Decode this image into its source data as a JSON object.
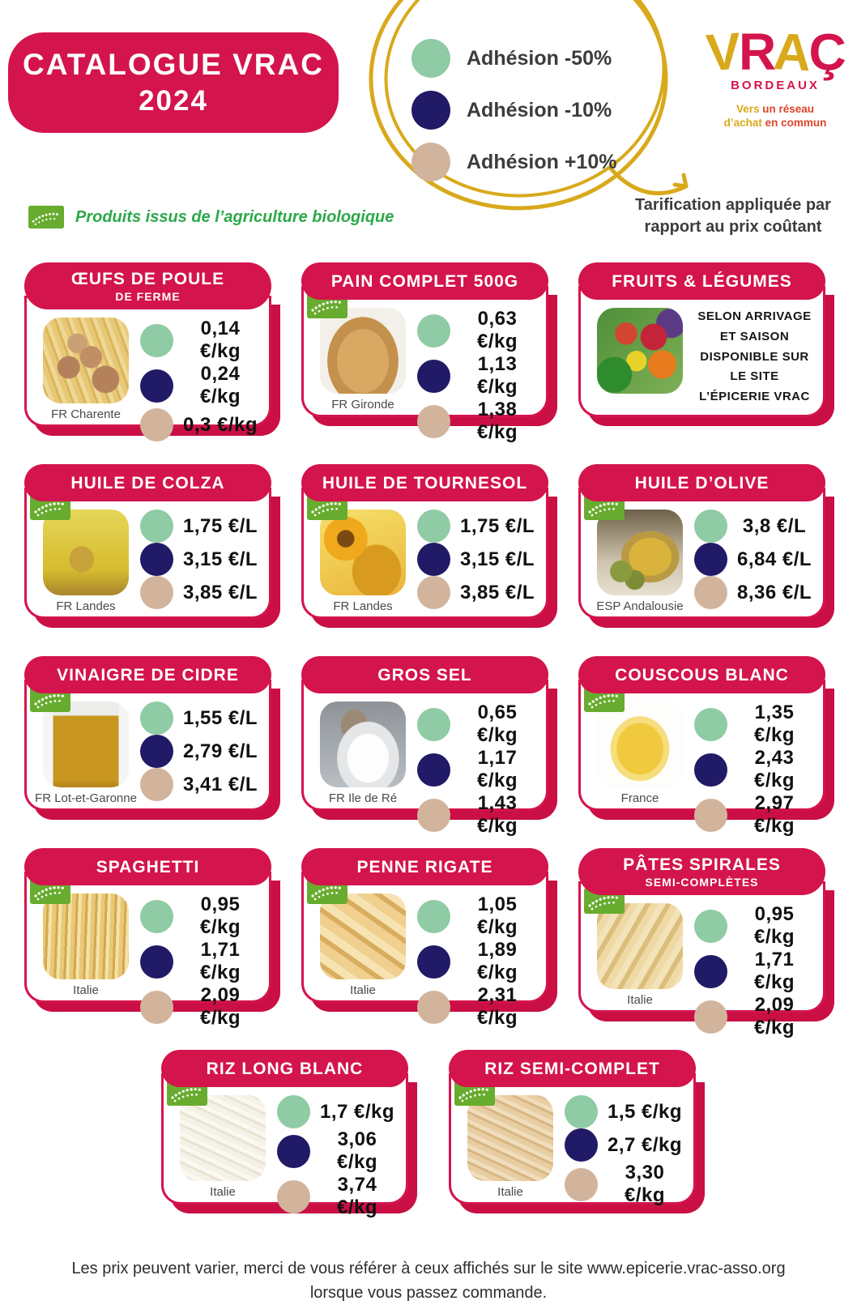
{
  "page_title": {
    "line1": "CATALOGUE VRAC",
    "line2": "2024"
  },
  "legend": {
    "items": [
      {
        "label": "Adhésion -50%",
        "tier": "green"
      },
      {
        "label": "Adhésion -10%",
        "tier": "navy"
      },
      {
        "label": "Adhésion +10%",
        "tier": "tan"
      }
    ],
    "note_line1": "Tarification appliquée par",
    "note_line2": "rapport au prix coûtant"
  },
  "tier_colors": {
    "green": "#8FCBA4",
    "navy": "#211A66",
    "tan": "#D2B49D"
  },
  "accent_colors": {
    "crimson": "#D4144C",
    "gold": "#D9A91C",
    "bio_green": "#68AC2F",
    "bio_text_green": "#2BA84A"
  },
  "logo": {
    "brand_letters": [
      {
        "ch": "V",
        "color": "#D9A91C"
      },
      {
        "ch": "R",
        "color": "#D4144C"
      },
      {
        "ch": "A",
        "color": "#D9A91C"
      },
      {
        "ch": "Ç",
        "color": "#D4144C"
      }
    ],
    "city": "BORDEAUX",
    "tagline_lines": [
      [
        {
          "t": "Vers ",
          "color": "#D9A91C"
        },
        {
          "t": "un réseau",
          "color": "#E0442B"
        }
      ],
      [
        {
          "t": "d’achat ",
          "color": "#D9A91C"
        },
        {
          "t": "en commun",
          "color": "#E0442B"
        }
      ]
    ]
  },
  "bio_note": "Produits issus de l’agriculture biologique",
  "products": [
    {
      "title": "ŒUFS DE POULE",
      "subtitle": "DE FERME",
      "bio": false,
      "image": "eggs",
      "origin": "FR Charente",
      "placement": "grid",
      "prices": [
        {
          "tier": "green",
          "value": "0,14 €/kg"
        },
        {
          "tier": "navy",
          "value": "0,24 €/kg"
        },
        {
          "tier": "tan",
          "value": "0,3 €/kg"
        }
      ]
    },
    {
      "title": "PAIN COMPLET 500G",
      "bio": true,
      "image": "bread",
      "origin": "FR Gironde",
      "placement": "grid",
      "prices": [
        {
          "tier": "green",
          "value": "0,63 €/kg"
        },
        {
          "tier": "navy",
          "value": "1,13 €/kg"
        },
        {
          "tier": "tan",
          "value": "1,38 €/kg"
        }
      ]
    },
    {
      "title": "FRUITS & LÉGUMES",
      "bio": false,
      "image": "veggies",
      "placement": "grid",
      "note_lines": [
        "SELON ARRIVAGE",
        "ET SAISON",
        "DISPONIBLE SUR",
        "LE SITE",
        "L’ÉPICERIE VRAC"
      ]
    },
    {
      "title": "HUILE DE COLZA",
      "bio": true,
      "image": "colza",
      "origin": "FR Landes",
      "placement": "grid",
      "prices": [
        {
          "tier": "green",
          "value": "1,75 €/L"
        },
        {
          "tier": "navy",
          "value": "3,15 €/L"
        },
        {
          "tier": "tan",
          "value": "3,85 €/L"
        }
      ]
    },
    {
      "title": "HUILE DE TOURNESOL",
      "bio": true,
      "image": "sunflower",
      "origin": "FR Landes",
      "placement": "grid",
      "prices": [
        {
          "tier": "green",
          "value": "1,75 €/L"
        },
        {
          "tier": "navy",
          "value": "3,15 €/L"
        },
        {
          "tier": "tan",
          "value": "3,85 €/L"
        }
      ]
    },
    {
      "title": "HUILE D’OLIVE",
      "bio": true,
      "image": "olive",
      "origin": "ESP Andalousie",
      "placement": "grid",
      "prices": [
        {
          "tier": "green",
          "value": "3,8 €/L"
        },
        {
          "tier": "navy",
          "value": "6,84 €/L"
        },
        {
          "tier": "tan",
          "value": "8,36 €/L"
        }
      ]
    },
    {
      "title": "VINAIGRE DE CIDRE",
      "bio": true,
      "image": "vinegar",
      "origin": "FR Lot-et-Garonne",
      "placement": "grid",
      "prices": [
        {
          "tier": "green",
          "value": "1,55 €/L"
        },
        {
          "tier": "navy",
          "value": "2,79 €/L"
        },
        {
          "tier": "tan",
          "value": "3,41 €/L"
        }
      ]
    },
    {
      "title": "GROS SEL",
      "bio": false,
      "image": "salt",
      "origin": "FR Ile de Ré",
      "placement": "grid",
      "prices": [
        {
          "tier": "green",
          "value": "0,65 €/kg"
        },
        {
          "tier": "navy",
          "value": "1,17 €/kg"
        },
        {
          "tier": "tan",
          "value": "1,43 €/kg"
        }
      ]
    },
    {
      "title": "COUSCOUS BLANC",
      "bio": true,
      "image": "couscous",
      "origin": "France",
      "placement": "grid",
      "prices": [
        {
          "tier": "green",
          "value": "1,35 €/kg"
        },
        {
          "tier": "navy",
          "value": "2,43 €/kg"
        },
        {
          "tier": "tan",
          "value": "2,97 €/kg"
        }
      ]
    },
    {
      "title": "SPAGHETTI",
      "bio": true,
      "image": "spaghetti",
      "origin": "Italie",
      "placement": "grid",
      "prices": [
        {
          "tier": "green",
          "value": "0,95 €/kg"
        },
        {
          "tier": "navy",
          "value": "1,71 €/kg"
        },
        {
          "tier": "tan",
          "value": "2,09 €/kg"
        }
      ]
    },
    {
      "title": "PENNE RIGATE",
      "bio": true,
      "image": "penne",
      "origin": "Italie",
      "placement": "grid",
      "prices": [
        {
          "tier": "green",
          "value": "1,05 €/kg"
        },
        {
          "tier": "navy",
          "value": "1,89 €/kg"
        },
        {
          "tier": "tan",
          "value": "2,31 €/kg"
        }
      ]
    },
    {
      "title": "PÂTES SPIRALES",
      "subtitle": "SEMI-COMPLÈTES",
      "bio": true,
      "image": "fusilli",
      "origin": "Italie",
      "placement": "grid",
      "prices": [
        {
          "tier": "green",
          "value": "0,95 €/kg"
        },
        {
          "tier": "navy",
          "value": "1,71 €/kg"
        },
        {
          "tier": "tan",
          "value": "2,09 €/kg"
        }
      ]
    },
    {
      "title": "RIZ LONG BLANC",
      "bio": true,
      "image": "rice-white",
      "origin": "Italie",
      "placement": "bottom",
      "prices": [
        {
          "tier": "green",
          "value": "1,7 €/kg"
        },
        {
          "tier": "navy",
          "value": "3,06 €/kg"
        },
        {
          "tier": "tan",
          "value": "3,74 €/kg"
        }
      ]
    },
    {
      "title": "RIZ SEMI-COMPLET",
      "bio": true,
      "image": "rice-brown",
      "origin": "Italie",
      "placement": "bottom",
      "prices": [
        {
          "tier": "green",
          "value": "1,5 €/kg"
        },
        {
          "tier": "navy",
          "value": "2,7 €/kg"
        },
        {
          "tier": "tan",
          "value": "3,30 €/kg"
        }
      ]
    }
  ],
  "footer": {
    "line1": "Les prix peuvent varier, merci de vous référer à ceux affichés sur le site www.epicerie.vrac-asso.org",
    "line2": "lorsque vous passez commande."
  }
}
